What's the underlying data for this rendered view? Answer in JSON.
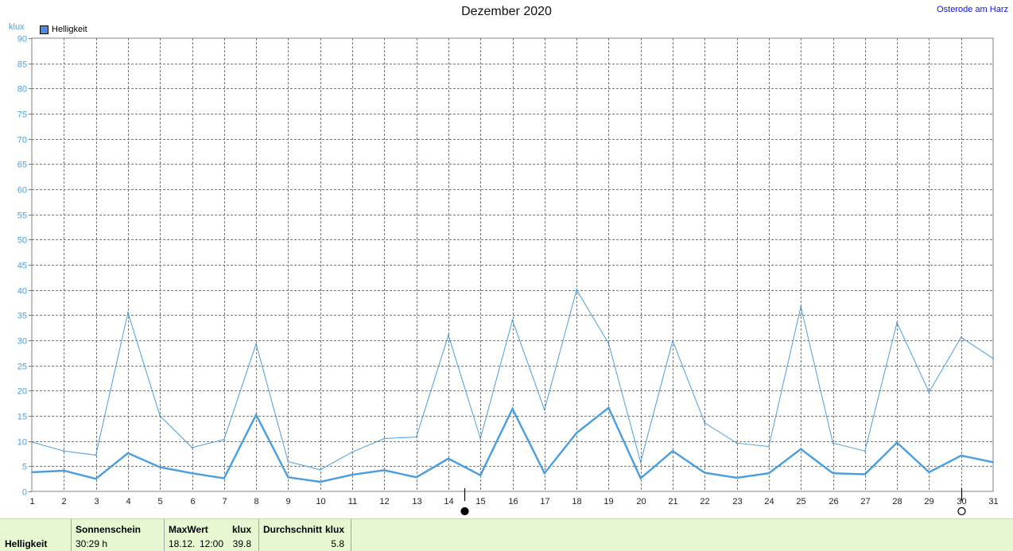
{
  "title": "Dezember 2020",
  "location": "Osterode am Harz",
  "legend": {
    "label": "Helligkeit",
    "color": "#4a8fd8"
  },
  "chart_data": {
    "type": "line",
    "title": "Dezember 2020",
    "ylabel": "klux",
    "ylim": [
      0,
      90
    ],
    "yticks": [
      0,
      5,
      10,
      15,
      20,
      25,
      30,
      35,
      40,
      45,
      50,
      55,
      60,
      65,
      70,
      75,
      80,
      85,
      90
    ],
    "x": [
      1,
      2,
      3,
      4,
      5,
      6,
      7,
      8,
      9,
      10,
      11,
      12,
      13,
      14,
      15,
      16,
      17,
      18,
      19,
      20,
      21,
      22,
      23,
      24,
      25,
      26,
      27,
      28,
      29,
      30,
      31
    ],
    "grid": true,
    "series": [
      {
        "name": "Helligkeit",
        "style": "max",
        "color": "#4a9ee0",
        "values": [
          9.8,
          8,
          7.2,
          35.5,
          15,
          8.7,
          10.3,
          29.3,
          5.9,
          4.3,
          7.8,
          10.5,
          10.8,
          31,
          10.5,
          34,
          16.2,
          40,
          29.4,
          5.8,
          29.9,
          13.6,
          9.6,
          8.9,
          36.7,
          9.6,
          8,
          33.5,
          19.7,
          30.6,
          26.4
        ]
      },
      {
        "name": "Helligkeit",
        "style": "avg",
        "color": "#4a9ee0",
        "values": [
          3.8,
          4.1,
          2.5,
          7.6,
          4.8,
          3.6,
          2.6,
          15.2,
          2.8,
          1.9,
          3.3,
          4.2,
          2.8,
          6.5,
          3.2,
          16.4,
          3.6,
          11.6,
          16.6,
          2.6,
          8,
          3.7,
          2.7,
          3.6,
          8.4,
          3.6,
          3.4,
          9.7,
          3.8,
          7.1,
          5.8
        ]
      }
    ],
    "moon_markers": [
      {
        "day": 14.5,
        "phase": "new"
      },
      {
        "day": 30,
        "phase": "full"
      }
    ]
  },
  "footer": {
    "row_label": "Helligkeit",
    "sonnenschein": {
      "header": "Sonnenschein",
      "value": "30:29 h"
    },
    "maxwert": {
      "header": "MaxWert",
      "unit": "klux",
      "date": "18.12.",
      "time": "12:00",
      "value": "39.8"
    },
    "durchschnitt": {
      "header": "Durchschnitt",
      "unit": "klux",
      "value": "5.8"
    }
  }
}
